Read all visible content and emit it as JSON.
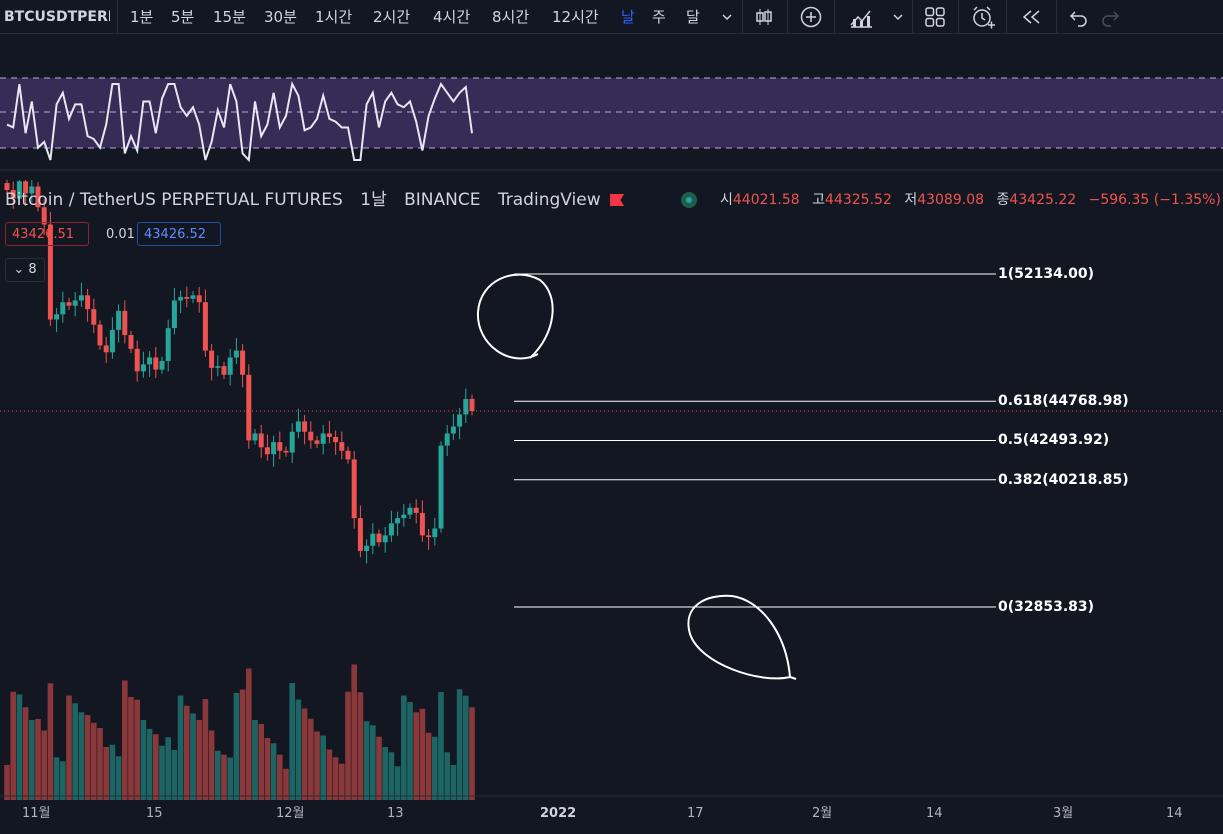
{
  "toolbar": {
    "symbol": "BTCUSDTPERP",
    "intervals": [
      "1분",
      "5분",
      "15분",
      "30분",
      "1시간",
      "2시간",
      "4시간",
      "8시간",
      "12시간",
      "날",
      "주",
      "달"
    ],
    "active_interval": "날",
    "icons": [
      "chevron-down-icon",
      "candlestick-icon",
      "add-compare-icon",
      "indicators-icon",
      "chevron-down-icon",
      "layout-icon",
      "alert-icon",
      "replay-icon",
      "undo-icon",
      "redo-icon"
    ]
  },
  "legend": {
    "pair": "Bitcoin / TetherUS PERPETUAL FUTURES",
    "interval": "1날",
    "exchange": "BINANCE",
    "source": "TradingView",
    "ohlc": [
      {
        "k": "시",
        "v": "44021.58"
      },
      {
        "k": "고",
        "v": "44325.52"
      },
      {
        "k": "저",
        "v": "43089.08"
      },
      {
        "k": "종",
        "v": "43425.22"
      }
    ],
    "change": "−596.35 (−1.35%)"
  },
  "price_boxes": {
    "bid": "43426.51",
    "spread": "0.01",
    "ask": "43426.52"
  },
  "indicators_count": "8",
  "fib_levels": [
    {
      "label": "1(52134.00)",
      "price": 52134.0
    },
    {
      "label": "0.618(44768.98)",
      "price": 44768.98
    },
    {
      "label": "0.5(42493.92)",
      "price": 42493.92
    },
    {
      "label": "0.382(40218.85)",
      "price": 40218.85
    },
    {
      "label": "0(32853.83)",
      "price": 32853.83
    }
  ],
  "time_axis": [
    {
      "label": "11월",
      "bold": false
    },
    {
      "label": "15",
      "bold": false
    },
    {
      "label": "12월",
      "bold": false
    },
    {
      "label": "13",
      "bold": false
    },
    {
      "label": "2022",
      "bold": true
    },
    {
      "label": "17",
      "bold": false
    },
    {
      "label": "2월",
      "bold": false
    },
    {
      "label": "14",
      "bold": false
    },
    {
      "label": "3월",
      "bold": false
    },
    {
      "label": "14",
      "bold": false
    }
  ],
  "colors": {
    "up": "#26a69a",
    "down": "#ef5350",
    "background": "#131722",
    "rsi_band": "#7e57c2",
    "fib_line": "#ffffff"
  },
  "chart_data": {
    "type": "candlestick",
    "symbol": "BTCUSDTPERP",
    "interval": "1D",
    "price_range": [
      30500,
      60500
    ],
    "candles_close_estimates": [
      57000,
      56500,
      57500,
      56800,
      57200,
      56000,
      55000,
      49500,
      49800,
      50500,
      50300,
      50600,
      50900,
      50100,
      49200,
      48000,
      47600,
      48900,
      50000,
      48600,
      47800,
      46500,
      46900,
      47300,
      46600,
      47100,
      49000,
      50600,
      50800,
      50700,
      50900,
      50500,
      47700,
      46700,
      46800,
      46300,
      47300,
      47700,
      46300,
      42500,
      42900,
      42100,
      41700,
      42400,
      41900,
      41800,
      43000,
      43600,
      43000,
      42500,
      42300,
      42900,
      42700,
      42400,
      41900,
      41400,
      38000,
      36100,
      36400,
      37100,
      36600,
      37000,
      37700,
      38000,
      38200,
      38600,
      38300,
      37000,
      36900,
      37400,
      42200,
      42900,
      43300,
      44000,
      44900,
      44200
    ]
  }
}
